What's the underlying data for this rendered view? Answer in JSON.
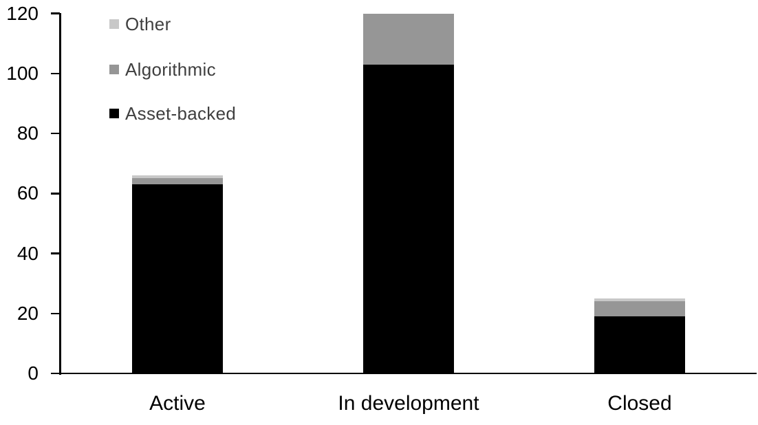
{
  "chart_data": {
    "type": "bar",
    "stacked": true,
    "title": "",
    "xlabel": "",
    "ylabel": "",
    "categories": [
      "Active",
      "In development",
      "Closed"
    ],
    "series": [
      {
        "name": "Asset-backed",
        "color": "#000000",
        "values": [
          63,
          103,
          19
        ]
      },
      {
        "name": "Algorithmic",
        "color": "#969696",
        "values": [
          2,
          17,
          5
        ]
      },
      {
        "name": "Other",
        "color": "#C8C8C8",
        "values": [
          1,
          0,
          1
        ]
      }
    ],
    "stack_order_bottom_to_top": [
      "Asset-backed",
      "Algorithmic",
      "Other"
    ],
    "category_totals": [
      66,
      120,
      25
    ],
    "ylim": [
      0,
      120
    ],
    "yticks": [
      0,
      20,
      40,
      60,
      80,
      100,
      120
    ],
    "grid": false,
    "legend_position": "top-left"
  },
  "legend": {
    "items": [
      {
        "label": "Other",
        "color": "#C8C8C8"
      },
      {
        "label": "Algorithmic",
        "color": "#969696"
      },
      {
        "label": "Asset-backed",
        "color": "#000000"
      }
    ]
  },
  "styles": {
    "axis_color": "#000000",
    "axis_label_color": "#000000",
    "legend_text_color": "#3F3F3F",
    "background": "#FFFFFF"
  }
}
